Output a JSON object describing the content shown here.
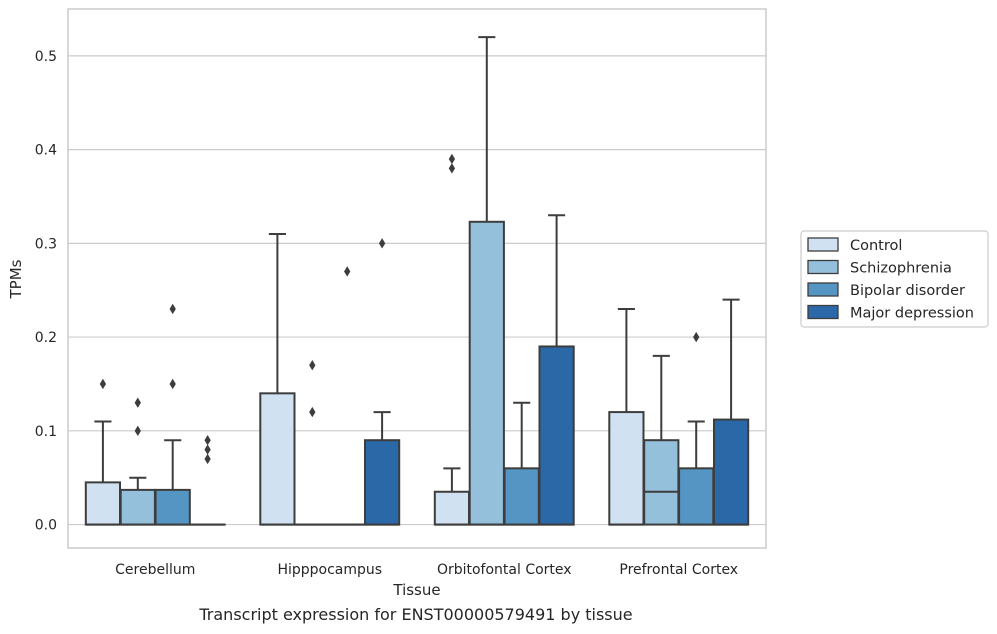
{
  "caption": "Transcript expression for ENST00000579491 by tissue",
  "chart_data": {
    "type": "box",
    "xlabel": "Tissue",
    "ylabel": "TPMs",
    "ylim": [
      -0.025,
      0.55
    ],
    "yticks": [
      0.0,
      0.1,
      0.2,
      0.3,
      0.4,
      0.5
    ],
    "ytick_labels": [
      "0.0",
      "0.1",
      "0.2",
      "0.3",
      "0.4",
      "0.5"
    ],
    "grid": "horizontal",
    "legend_position": "outside right",
    "categories": [
      "Cerebellum",
      "Hipppocampus",
      "Orbitofontal Cortex",
      "Prefrontal Cortex"
    ],
    "series": [
      {
        "name": "Control",
        "color": "#d0e1f1",
        "boxes": [
          {
            "q1": 0.0,
            "median": 0.0,
            "q3": 0.045,
            "whisker_low": 0.0,
            "whisker_high": 0.11,
            "outliers": [
              0.15
            ]
          },
          {
            "q1": 0.0,
            "median": 0.0,
            "q3": 0.14,
            "whisker_low": 0.0,
            "whisker_high": 0.31,
            "outliers": []
          },
          {
            "q1": 0.0,
            "median": 0.0,
            "q3": 0.035,
            "whisker_low": 0.0,
            "whisker_high": 0.06,
            "outliers": [
              0.38,
              0.39
            ]
          },
          {
            "q1": 0.0,
            "median": 0.0,
            "q3": 0.12,
            "whisker_low": 0.0,
            "whisker_high": 0.23,
            "outliers": []
          }
        ]
      },
      {
        "name": "Schizophrenia",
        "color": "#95c0dc",
        "boxes": [
          {
            "q1": 0.0,
            "median": 0.0,
            "q3": 0.037,
            "whisker_low": 0.0,
            "whisker_high": 0.05,
            "outliers": [
              0.1,
              0.13
            ]
          },
          {
            "q1": 0.0,
            "median": 0.0,
            "q3": 0.0,
            "whisker_low": 0.0,
            "whisker_high": 0.0,
            "outliers": [
              0.12,
              0.17
            ]
          },
          {
            "q1": 0.0,
            "median": 0.0,
            "q3": 0.323,
            "whisker_low": 0.0,
            "whisker_high": 0.52,
            "outliers": []
          },
          {
            "q1": 0.0,
            "median": 0.035,
            "q3": 0.09,
            "whisker_low": 0.0,
            "whisker_high": 0.18,
            "outliers": []
          }
        ]
      },
      {
        "name": "Bipolar disorder",
        "color": "#5495c4",
        "boxes": [
          {
            "q1": 0.0,
            "median": 0.0,
            "q3": 0.037,
            "whisker_low": 0.0,
            "whisker_high": 0.09,
            "outliers": [
              0.15,
              0.23
            ]
          },
          {
            "q1": 0.0,
            "median": 0.0,
            "q3": 0.0,
            "whisker_low": 0.0,
            "whisker_high": 0.0,
            "outliers": [
              0.27
            ]
          },
          {
            "q1": 0.0,
            "median": 0.0,
            "q3": 0.06,
            "whisker_low": 0.0,
            "whisker_high": 0.13,
            "outliers": []
          },
          {
            "q1": 0.0,
            "median": 0.0,
            "q3": 0.06,
            "whisker_low": 0.0,
            "whisker_high": 0.11,
            "outliers": [
              0.2
            ]
          }
        ]
      },
      {
        "name": "Major depression",
        "color": "#2a68a8",
        "boxes": [
          {
            "q1": 0.0,
            "median": 0.0,
            "q3": 0.0,
            "whisker_low": 0.0,
            "whisker_high": 0.0,
            "outliers": [
              0.07,
              0.08,
              0.09
            ]
          },
          {
            "q1": 0.0,
            "median": 0.0,
            "q3": 0.09,
            "whisker_low": 0.0,
            "whisker_high": 0.12,
            "outliers": [
              0.3
            ]
          },
          {
            "q1": 0.0,
            "median": 0.0,
            "q3": 0.19,
            "whisker_low": 0.0,
            "whisker_high": 0.33,
            "outliers": []
          },
          {
            "q1": 0.0,
            "median": 0.0,
            "q3": 0.112,
            "whisker_low": 0.0,
            "whisker_high": 0.24,
            "outliers": []
          }
        ]
      }
    ]
  }
}
